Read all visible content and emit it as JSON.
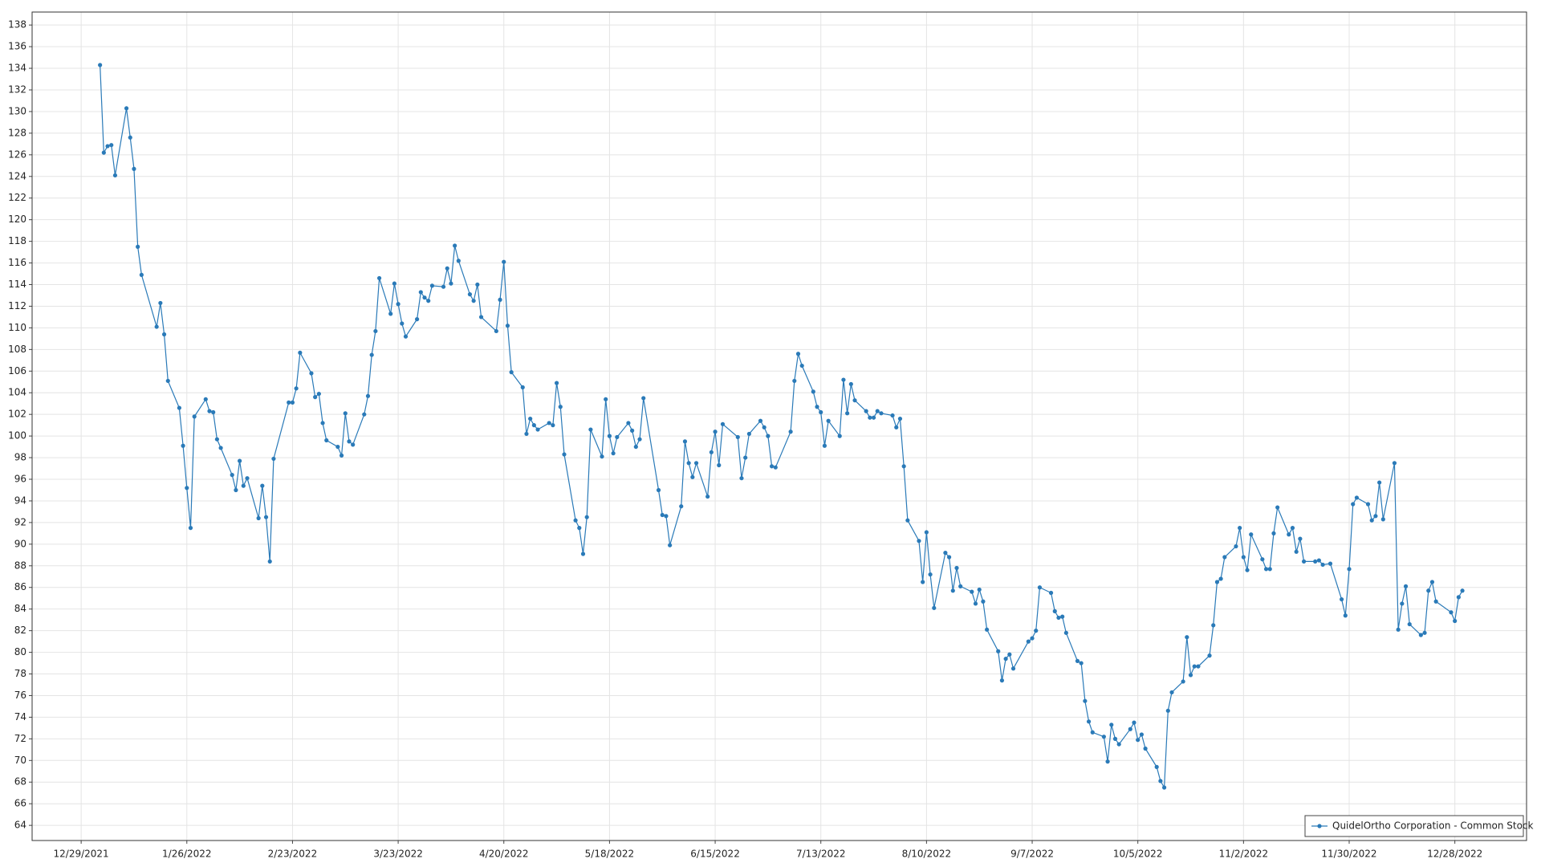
{
  "chart_data": {
    "type": "line",
    "x": [
      "1/3/2022",
      "1/4/2022",
      "1/5/2022",
      "1/6/2022",
      "1/7/2022",
      "1/10/2022",
      "1/11/2022",
      "1/12/2022",
      "1/13/2022",
      "1/14/2022",
      "1/18/2022",
      "1/19/2022",
      "1/20/2022",
      "1/21/2022",
      "1/24/2022",
      "1/25/2022",
      "1/26/2022",
      "1/27/2022",
      "1/28/2022",
      "1/31/2022",
      "2/1/2022",
      "2/2/2022",
      "2/3/2022",
      "2/4/2022",
      "2/7/2022",
      "2/8/2022",
      "2/9/2022",
      "2/10/2022",
      "2/11/2022",
      "2/14/2022",
      "2/15/2022",
      "2/16/2022",
      "2/17/2022",
      "2/18/2022",
      "2/22/2022",
      "2/23/2022",
      "2/24/2022",
      "2/25/2022",
      "2/28/2022",
      "3/1/2022",
      "3/2/2022",
      "3/3/2022",
      "3/4/2022",
      "3/7/2022",
      "3/8/2022",
      "3/9/2022",
      "3/10/2022",
      "3/11/2022",
      "3/14/2022",
      "3/15/2022",
      "3/16/2022",
      "3/17/2022",
      "3/18/2022",
      "3/21/2022",
      "3/22/2022",
      "3/23/2022",
      "3/24/2022",
      "3/25/2022",
      "3/28/2022",
      "3/29/2022",
      "3/30/2022",
      "3/31/2022",
      "4/1/2022",
      "4/4/2022",
      "4/5/2022",
      "4/6/2022",
      "4/7/2022",
      "4/8/2022",
      "4/11/2022",
      "4/12/2022",
      "4/13/2022",
      "4/14/2022",
      "4/18/2022",
      "4/19/2022",
      "4/20/2022",
      "4/21/2022",
      "4/22/2022",
      "4/25/2022",
      "4/26/2022",
      "4/27/2022",
      "4/28/2022",
      "4/29/2022",
      "5/2/2022",
      "5/3/2022",
      "5/4/2022",
      "5/5/2022",
      "5/6/2022",
      "5/9/2022",
      "5/10/2022",
      "5/11/2022",
      "5/12/2022",
      "5/13/2022",
      "5/16/2022",
      "5/17/2022",
      "5/18/2022",
      "5/19/2022",
      "5/20/2022",
      "5/23/2022",
      "5/24/2022",
      "5/25/2022",
      "5/26/2022",
      "5/27/2022",
      "5/31/2022",
      "6/1/2022",
      "6/2/2022",
      "6/3/2022",
      "6/6/2022",
      "6/7/2022",
      "6/8/2022",
      "6/9/2022",
      "6/10/2022",
      "6/13/2022",
      "6/14/2022",
      "6/15/2022",
      "6/16/2022",
      "6/17/2022",
      "6/21/2022",
      "6/22/2022",
      "6/23/2022",
      "6/24/2022",
      "6/27/2022",
      "6/28/2022",
      "6/29/2022",
      "6/30/2022",
      "7/1/2022",
      "7/5/2022",
      "7/6/2022",
      "7/7/2022",
      "7/8/2022",
      "7/11/2022",
      "7/12/2022",
      "7/13/2022",
      "7/14/2022",
      "7/15/2022",
      "7/18/2022",
      "7/19/2022",
      "7/20/2022",
      "7/21/2022",
      "7/22/2022",
      "7/25/2022",
      "7/26/2022",
      "7/27/2022",
      "7/28/2022",
      "7/29/2022",
      "8/1/2022",
      "8/2/2022",
      "8/3/2022",
      "8/4/2022",
      "8/5/2022",
      "8/8/2022",
      "8/9/2022",
      "8/10/2022",
      "8/11/2022",
      "8/12/2022",
      "8/15/2022",
      "8/16/2022",
      "8/17/2022",
      "8/18/2022",
      "8/19/2022",
      "8/22/2022",
      "8/23/2022",
      "8/24/2022",
      "8/25/2022",
      "8/26/2022",
      "8/29/2022",
      "8/30/2022",
      "8/31/2022",
      "9/1/2022",
      "9/2/2022",
      "9/6/2022",
      "9/7/2022",
      "9/8/2022",
      "9/9/2022",
      "9/12/2022",
      "9/13/2022",
      "9/14/2022",
      "9/15/2022",
      "9/16/2022",
      "9/19/2022",
      "9/20/2022",
      "9/21/2022",
      "9/22/2022",
      "9/23/2022",
      "9/26/2022",
      "9/27/2022",
      "9/28/2022",
      "9/29/2022",
      "9/30/2022",
      "10/3/2022",
      "10/4/2022",
      "10/5/2022",
      "10/6/2022",
      "10/7/2022",
      "10/10/2022",
      "10/11/2022",
      "10/12/2022",
      "10/13/2022",
      "10/14/2022",
      "10/17/2022",
      "10/18/2022",
      "10/19/2022",
      "10/20/2022",
      "10/21/2022",
      "10/24/2022",
      "10/25/2022",
      "10/26/2022",
      "10/27/2022",
      "10/28/2022",
      "10/31/2022",
      "11/1/2022",
      "11/2/2022",
      "11/3/2022",
      "11/4/2022",
      "11/7/2022",
      "11/8/2022",
      "11/9/2022",
      "11/10/2022",
      "11/11/2022",
      "11/14/2022",
      "11/15/2022",
      "11/16/2022",
      "11/17/2022",
      "11/18/2022",
      "11/21/2022",
      "11/22/2022",
      "11/23/2022",
      "11/25/2022",
      "11/28/2022",
      "11/29/2022",
      "11/30/2022",
      "12/1/2022",
      "12/2/2022",
      "12/5/2022",
      "12/6/2022",
      "12/7/2022",
      "12/8/2022",
      "12/9/2022",
      "12/12/2022",
      "12/13/2022",
      "12/14/2022",
      "12/15/2022",
      "12/16/2022",
      "12/19/2022",
      "12/20/2022",
      "12/21/2022",
      "12/22/2022",
      "12/23/2022",
      "12/27/2022",
      "12/28/2022",
      "12/29/2022",
      "12/30/2022"
    ],
    "series": [
      {
        "name": "QuidelOrtho Corporation - Common Stock",
        "color": "#2a7ab8",
        "values": [
          134.3,
          126.2,
          126.8,
          126.9,
          124.1,
          130.3,
          127.6,
          124.7,
          117.5,
          114.9,
          110.1,
          112.3,
          109.4,
          105.1,
          102.6,
          99.1,
          95.2,
          91.5,
          101.8,
          103.4,
          102.3,
          102.2,
          99.7,
          98.9,
          96.4,
          95.0,
          97.7,
          95.4,
          96.1,
          92.4,
          95.4,
          92.5,
          88.4,
          97.9,
          103.1,
          103.1,
          104.4,
          107.7,
          105.8,
          103.6,
          103.9,
          101.2,
          99.6,
          99.0,
          98.2,
          102.1,
          99.5,
          99.2,
          102.0,
          103.7,
          107.5,
          109.7,
          114.6,
          111.3,
          114.1,
          112.2,
          110.4,
          109.2,
          110.8,
          113.3,
          112.8,
          112.5,
          113.9,
          113.8,
          115.5,
          114.1,
          117.6,
          116.2,
          113.1,
          112.5,
          114.0,
          111.0,
          109.7,
          112.6,
          116.1,
          110.2,
          105.9,
          104.5,
          100.2,
          101.6,
          101.0,
          100.6,
          101.2,
          101.0,
          104.9,
          102.7,
          98.3,
          92.2,
          91.5,
          89.1,
          92.5,
          100.6,
          98.1,
          103.4,
          100.0,
          98.4,
          99.9,
          101.2,
          100.5,
          99.0,
          99.7,
          103.5,
          95.0,
          92.7,
          92.6,
          89.9,
          93.5,
          99.5,
          97.5,
          96.2,
          97.5,
          94.4,
          98.5,
          100.4,
          97.3,
          101.1,
          99.9,
          96.1,
          98.0,
          100.2,
          101.4,
          100.8,
          100.0,
          97.2,
          97.1,
          100.4,
          105.1,
          107.6,
          106.5,
          104.1,
          102.7,
          102.2,
          99.1,
          101.4,
          100.0,
          105.2,
          102.1,
          104.8,
          103.3,
          102.3,
          101.7,
          101.7,
          102.3,
          102.1,
          101.9,
          100.8,
          101.6,
          97.2,
          92.2,
          90.3,
          86.5,
          91.1,
          87.2,
          84.1,
          89.2,
          88.8,
          85.7,
          87.8,
          86.1,
          85.6,
          84.5,
          85.8,
          84.7,
          82.1,
          80.1,
          77.4,
          79.4,
          79.8,
          78.5,
          81.0,
          81.3,
          82.0,
          86.0,
          85.5,
          83.8,
          83.2,
          83.3,
          81.8,
          79.2,
          79.0,
          75.5,
          73.6,
          72.6,
          72.2,
          69.9,
          73.3,
          72.0,
          71.5,
          72.9,
          73.5,
          71.9,
          72.4,
          71.1,
          69.4,
          68.1,
          67.5,
          74.6,
          76.3,
          77.3,
          81.4,
          77.9,
          78.7,
          78.7,
          79.7,
          82.5,
          86.5,
          86.8,
          88.8,
          89.8,
          91.5,
          88.8,
          87.6,
          90.9,
          88.6,
          87.7,
          87.7,
          91.0,
          93.4,
          90.9,
          91.5,
          89.3,
          90.5,
          88.4,
          88.4,
          88.5,
          88.1,
          88.2,
          84.9,
          83.4,
          87.7,
          93.7,
          94.3,
          93.7,
          92.2,
          92.6,
          95.7,
          92.3,
          97.5,
          82.1,
          84.5,
          86.1,
          82.6,
          81.6,
          81.8,
          85.7,
          86.5,
          84.7,
          83.7,
          82.9,
          85.1,
          85.7
        ]
      }
    ],
    "xlim": [
      "12/16/2021",
      "1/16/2023"
    ],
    "xticks": [
      "12/29/2021",
      "1/26/2022",
      "2/23/2022",
      "3/23/2022",
      "4/20/2022",
      "5/18/2022",
      "6/15/2022",
      "7/13/2022",
      "8/10/2022",
      "9/7/2022",
      "10/5/2022",
      "11/2/2022",
      "11/30/2022",
      "12/28/2022"
    ],
    "ylim": [
      62.6,
      139.2
    ],
    "yticks": [
      64,
      66,
      68,
      70,
      72,
      74,
      76,
      78,
      80,
      82,
      84,
      86,
      88,
      90,
      92,
      94,
      96,
      98,
      100,
      102,
      104,
      106,
      108,
      110,
      112,
      114,
      116,
      118,
      120,
      122,
      124,
      126,
      128,
      130,
      132,
      134,
      136,
      138
    ],
    "grid": true,
    "legend": "bottom-right"
  }
}
